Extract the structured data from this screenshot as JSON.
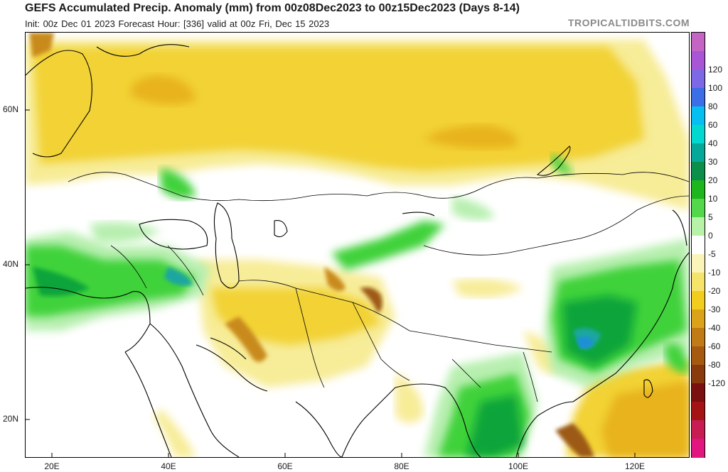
{
  "header": {
    "title": "GEFS Accumulated Precip. Anomaly (mm) from 00z08Dec2023 to 00z15Dec2023 (Days 8-14)",
    "subtitle": "Init: 00z Dec 01 2023   Forecast Hour: [336]   valid at 00z Fri, Dec 15 2023",
    "brand": "TROPICALTIDBITS.COM"
  },
  "map": {
    "lat_labels": [
      "60N",
      "40N",
      "20N"
    ],
    "lon_labels": [
      "20E",
      "40E",
      "60E",
      "80E",
      "100E",
      "120E"
    ],
    "colors": {
      "ocean": "#ffffff",
      "coast": "#000000",
      "dry_light": "#f7ec97",
      "dry_mid": "#f2d235",
      "dry_strong": "#e8b31c",
      "dry_brown": "#c98a1a",
      "dry_deep": "#9c5a14",
      "wet_light": "#b8efb0",
      "wet_mid": "#3fd23b",
      "wet_strong": "#0aa53a",
      "wet_teal": "#1aa6a0",
      "wet_blue": "#1d8fd8"
    }
  },
  "colorbar": {
    "labels": [
      "120",
      "100",
      "80",
      "60",
      "40",
      "30",
      "20",
      "10",
      "5",
      "0",
      "-5",
      "-10",
      "-20",
      "-30",
      "-40",
      "-60",
      "-80",
      "-120"
    ],
    "colors": [
      "#c465c4",
      "#a855d6",
      "#7d69e6",
      "#3c6ee8",
      "#05bff0",
      "#03d8d0",
      "#06a89a",
      "#0b8f4a",
      "#1db61f",
      "#52d84a",
      "#b6f2a8",
      "#ffffff",
      "#fbf4b8",
      "#f5e36a",
      "#f2cc1e",
      "#dba31a",
      "#c07a16",
      "#a65a10",
      "#8a3b0d",
      "#7a1010",
      "#a51414",
      "#c81d52",
      "#e21680"
    ]
  }
}
